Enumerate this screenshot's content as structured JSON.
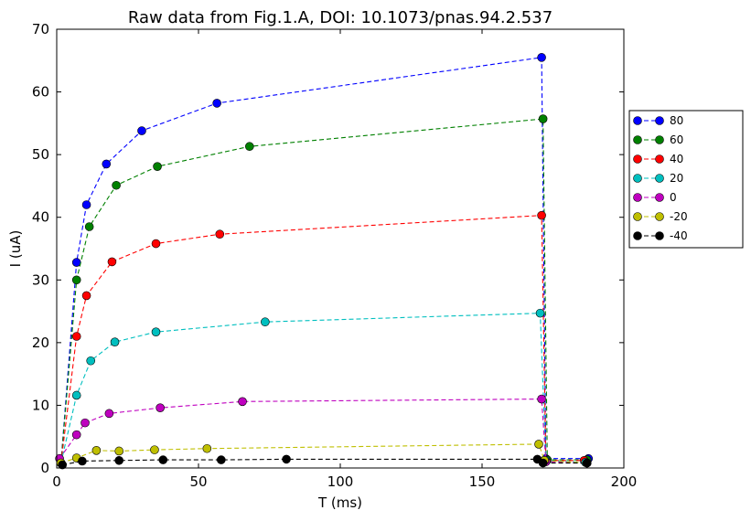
{
  "chart_data": {
    "type": "line",
    "title": "Raw data from Fig.1.A, DOI: 10.1073/pnas.94.2.537",
    "xlabel": "T (ms)",
    "ylabel": "I (uA)",
    "xlim": [
      0,
      200
    ],
    "ylim": [
      0,
      70
    ],
    "xticks": [
      0,
      50,
      100,
      150,
      200
    ],
    "yticks": [
      0,
      10,
      20,
      30,
      40,
      50,
      60,
      70
    ],
    "grid": false,
    "legend_position": "right",
    "line_style": "dashed",
    "marker": "circle",
    "series": [
      {
        "name": "80",
        "color": "#0000ff",
        "x": [
          1.5,
          7,
          10.5,
          17.5,
          30,
          56.5,
          171,
          172.5,
          187.5
        ],
        "y": [
          0.8,
          32.8,
          42,
          48.5,
          53.8,
          58.2,
          65.5,
          1.5,
          1.5
        ]
      },
      {
        "name": "60",
        "color": "#008000",
        "x": [
          1.5,
          7,
          11.5,
          21,
          35.5,
          68,
          171.5,
          173,
          187
        ],
        "y": [
          0.8,
          30,
          38.5,
          45.1,
          48.1,
          51.3,
          55.7,
          1.3,
          1.3
        ]
      },
      {
        "name": "40",
        "color": "#ff0000",
        "x": [
          1.5,
          7,
          10.5,
          19.5,
          35,
          57.5,
          171,
          172.5,
          186
        ],
        "y": [
          0.8,
          21,
          27.5,
          32.9,
          35.8,
          37.3,
          40.3,
          1.2,
          1.2
        ]
      },
      {
        "name": "20",
        "color": "#00bfbf",
        "x": [
          1.5,
          7,
          12,
          20.5,
          35,
          73.5,
          170.5,
          172.5,
          186.5
        ],
        "y": [
          0.8,
          11.6,
          17.1,
          20.1,
          21.7,
          23.3,
          24.7,
          1.2,
          0.9
        ]
      },
      {
        "name": "0",
        "color": "#bf00bf",
        "x": [
          1,
          7,
          10,
          18.5,
          36.5,
          65.5,
          171,
          172.5,
          187
        ],
        "y": [
          1.5,
          5.3,
          7.2,
          8.7,
          9.6,
          10.6,
          11,
          1,
          0.8
        ]
      },
      {
        "name": "-20",
        "color": "#bfbf00",
        "x": [
          1.5,
          7,
          14,
          22,
          34.5,
          53,
          170,
          172,
          187
        ],
        "y": [
          0.8,
          1.6,
          2.8,
          2.7,
          2.9,
          3.1,
          3.8,
          1.2,
          0.8
        ]
      },
      {
        "name": "-40",
        "color": "#000000",
        "x": [
          2,
          9,
          22,
          37.5,
          58,
          81,
          169.5,
          171.5,
          187
        ],
        "y": [
          0.5,
          1.1,
          1.2,
          1.3,
          1.3,
          1.4,
          1.4,
          0.8,
          0.8
        ]
      }
    ]
  }
}
